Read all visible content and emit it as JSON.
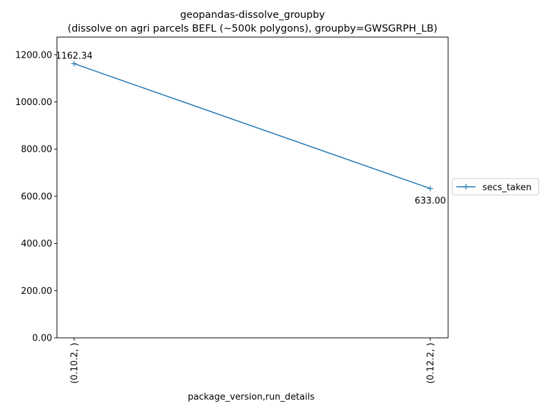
{
  "chart_data": {
    "type": "line",
    "title": "geopandas-dissolve_groupby",
    "subtitle": "(dissolve on agri parcels BEFL (~500k polygons), groupby=GWSGRPH_LB)",
    "xlabel": "package_version,run_details",
    "ylabel": "",
    "categories": [
      "(0.10.2, )",
      "(0.12.2, )"
    ],
    "series": [
      {
        "name": "secs_taken",
        "values": [
          1162.34,
          633.0
        ],
        "data_labels": [
          "1162.34",
          "633.00"
        ],
        "color": "#1f77b4",
        "marker": "plus"
      }
    ],
    "yticks": [
      "0.00",
      "200.00",
      "400.00",
      "600.00",
      "800.00",
      "1000.00",
      "1200.00"
    ],
    "ytick_values": [
      0,
      200,
      400,
      600,
      800,
      1000,
      1200
    ],
    "ylim": [
      0,
      1275
    ],
    "grid": false,
    "legend_position": "outside-right"
  }
}
